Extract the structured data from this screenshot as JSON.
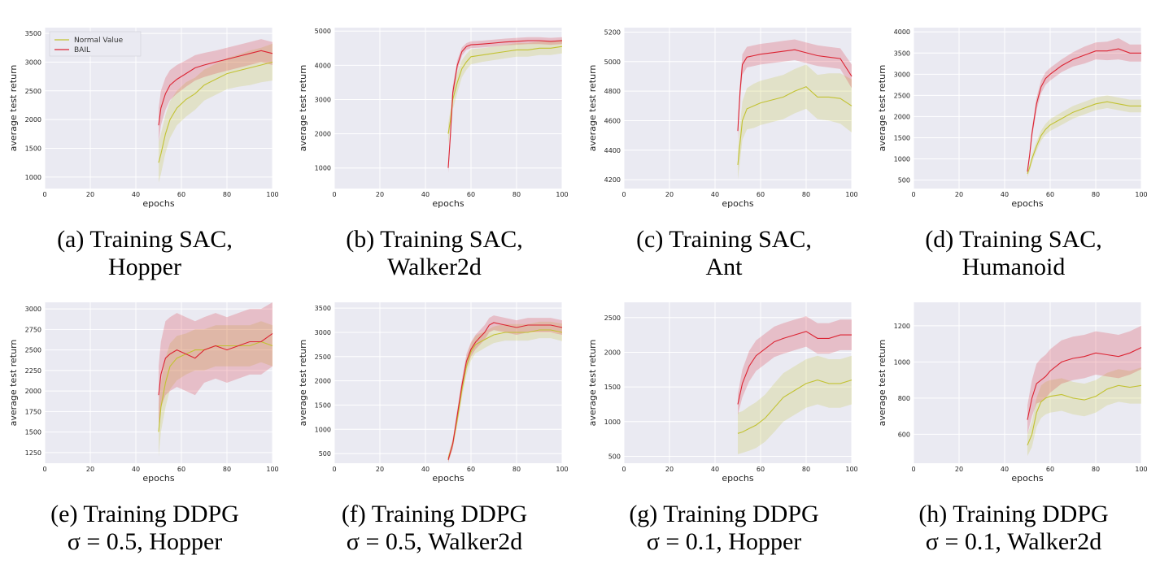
{
  "colors": {
    "normal": "#c2c232",
    "bail": "#dc2433",
    "plot_bg": "#eaeaf2",
    "grid": "#ffffff"
  },
  "legend": {
    "labels": [
      "Normal Value",
      "BAIL"
    ],
    "placement": "upper-left (panel a)"
  },
  "chart_data": [
    {
      "type": "line",
      "caption": [
        "(a) Training SAC,",
        "Hopper"
      ],
      "xlabel": "epochs",
      "ylabel": "average test return",
      "xlim": [
        0,
        100
      ],
      "ylim": [
        800,
        3600
      ],
      "xticks": [
        0,
        20,
        40,
        60,
        80,
        100
      ],
      "yticks": [
        1000,
        1500,
        2000,
        2500,
        3000,
        3500
      ],
      "series": [
        {
          "name": "Normal Value",
          "x": [
            50,
            51,
            53,
            55,
            58,
            62,
            66,
            70,
            75,
            80,
            85,
            90,
            95,
            100
          ],
          "y": [
            1250,
            1400,
            1750,
            2000,
            2200,
            2350,
            2450,
            2600,
            2700,
            2800,
            2850,
            2900,
            2950,
            3000
          ],
          "band": [
            350,
            350,
            330,
            320,
            300,
            300,
            280,
            270,
            270,
            270,
            280,
            300,
            300,
            320
          ]
        },
        {
          "name": "BAIL",
          "x": [
            50,
            51,
            53,
            55,
            58,
            62,
            66,
            70,
            75,
            80,
            85,
            90,
            95,
            100
          ],
          "y": [
            1900,
            2200,
            2450,
            2600,
            2700,
            2800,
            2900,
            2950,
            3000,
            3050,
            3100,
            3150,
            3200,
            3150
          ],
          "band": [
            300,
            300,
            280,
            260,
            250,
            230,
            220,
            210,
            200,
            200,
            200,
            200,
            200,
            200
          ]
        }
      ]
    },
    {
      "type": "line",
      "caption": [
        "(b) Training SAC,",
        "Walker2d"
      ],
      "xlabel": "epochs",
      "ylabel": "average test return",
      "xlim": [
        0,
        100
      ],
      "ylim": [
        400,
        5100
      ],
      "xticks": [
        0,
        20,
        40,
        60,
        80,
        100
      ],
      "yticks": [
        1000,
        2000,
        3000,
        4000,
        5000
      ],
      "series": [
        {
          "name": "Normal Value",
          "x": [
            50,
            51,
            52,
            54,
            56,
            58,
            60,
            65,
            70,
            75,
            80,
            85,
            90,
            95,
            100
          ],
          "y": [
            2000,
            2400,
            3000,
            3500,
            3900,
            4100,
            4250,
            4300,
            4350,
            4400,
            4450,
            4450,
            4500,
            4500,
            4550
          ],
          "band": [
            300,
            300,
            300,
            300,
            250,
            230,
            220,
            200,
            200,
            200,
            200,
            200,
            200,
            200,
            200
          ]
        },
        {
          "name": "BAIL",
          "x": [
            50,
            51,
            52,
            54,
            56,
            58,
            60,
            65,
            70,
            75,
            80,
            85,
            90,
            95,
            100
          ],
          "y": [
            1000,
            2000,
            3200,
            4000,
            4400,
            4550,
            4600,
            4620,
            4650,
            4680,
            4700,
            4720,
            4720,
            4700,
            4720
          ],
          "band": [
            150,
            200,
            200,
            150,
            120,
            100,
            100,
            100,
            100,
            100,
            100,
            100,
            100,
            100,
            100
          ]
        }
      ]
    },
    {
      "type": "line",
      "caption": [
        "(c) Training SAC,",
        "Ant"
      ],
      "xlabel": "epochs",
      "ylabel": "average test return",
      "xlim": [
        0,
        100
      ],
      "ylim": [
        4140,
        5230
      ],
      "xticks": [
        0,
        20,
        40,
        60,
        80,
        100
      ],
      "yticks": [
        4200,
        4400,
        4600,
        4800,
        5000,
        5200
      ],
      "series": [
        {
          "name": "Normal Value",
          "x": [
            50,
            51,
            52,
            54,
            57,
            60,
            65,
            70,
            75,
            80,
            85,
            90,
            95,
            100
          ],
          "y": [
            4300,
            4450,
            4600,
            4680,
            4700,
            4720,
            4740,
            4760,
            4800,
            4830,
            4760,
            4760,
            4750,
            4700
          ],
          "band": [
            100,
            120,
            130,
            140,
            150,
            150,
            150,
            150,
            150,
            150,
            150,
            160,
            170,
            180
          ]
        },
        {
          "name": "BAIL",
          "x": [
            50,
            51,
            52,
            54,
            57,
            60,
            65,
            70,
            75,
            80,
            85,
            90,
            95,
            100
          ],
          "y": [
            4530,
            4800,
            4980,
            5030,
            5040,
            5050,
            5060,
            5070,
            5080,
            5060,
            5040,
            5030,
            5020,
            4900
          ],
          "band": [
            60,
            60,
            70,
            70,
            70,
            70,
            70,
            70,
            70,
            70,
            70,
            70,
            70,
            80
          ]
        }
      ]
    },
    {
      "type": "line",
      "caption": [
        "(d) Training SAC,",
        "Humanoid"
      ],
      "xlabel": "epochs",
      "ylabel": "average test return",
      "xlim": [
        0,
        100
      ],
      "ylim": [
        300,
        4100
      ],
      "xticks": [
        0,
        20,
        40,
        60,
        80,
        100
      ],
      "yticks": [
        500,
        1000,
        1500,
        2000,
        2500,
        3000,
        3500,
        4000
      ],
      "series": [
        {
          "name": "Normal Value",
          "x": [
            50,
            51,
            52,
            54,
            56,
            58,
            60,
            65,
            70,
            75,
            80,
            85,
            90,
            95,
            100
          ],
          "y": [
            650,
            800,
            1000,
            1300,
            1550,
            1700,
            1800,
            1950,
            2100,
            2200,
            2300,
            2350,
            2300,
            2250,
            2250
          ],
          "band": [
            80,
            90,
            100,
            110,
            120,
            130,
            140,
            150,
            150,
            150,
            150,
            150,
            150,
            150,
            150
          ]
        },
        {
          "name": "BAIL",
          "x": [
            50,
            51,
            52,
            54,
            56,
            58,
            60,
            65,
            70,
            75,
            80,
            85,
            90,
            95,
            100
          ],
          "y": [
            700,
            1100,
            1600,
            2300,
            2700,
            2900,
            3000,
            3200,
            3350,
            3450,
            3550,
            3550,
            3600,
            3500,
            3500
          ],
          "band": [
            80,
            100,
            120,
            150,
            150,
            150,
            150,
            150,
            170,
            200,
            200,
            220,
            250,
            200,
            200
          ]
        }
      ]
    },
    {
      "type": "line",
      "caption": [
        "(e) Training DDPG",
        "σ = 0.5, Hopper"
      ],
      "xlabel": "epochs",
      "ylabel": "average test return",
      "xlim": [
        0,
        100
      ],
      "ylim": [
        1120,
        3080
      ],
      "xticks": [
        0,
        20,
        40,
        60,
        80,
        100
      ],
      "yticks": [
        1250,
        1500,
        1750,
        2000,
        2250,
        2500,
        2750,
        3000
      ],
      "series": [
        {
          "name": "Normal Value",
          "x": [
            50,
            51,
            53,
            55,
            58,
            62,
            66,
            70,
            75,
            80,
            85,
            90,
            95,
            100
          ],
          "y": [
            1500,
            1800,
            2100,
            2300,
            2400,
            2450,
            2500,
            2500,
            2550,
            2550,
            2550,
            2550,
            2600,
            2550
          ],
          "band": [
            300,
            300,
            300,
            280,
            270,
            250,
            250,
            250,
            250,
            250,
            250,
            250,
            250,
            250
          ]
        },
        {
          "name": "BAIL",
          "x": [
            50,
            51,
            53,
            55,
            58,
            62,
            66,
            70,
            75,
            80,
            85,
            90,
            95,
            100
          ],
          "y": [
            1950,
            2200,
            2400,
            2450,
            2500,
            2450,
            2400,
            2500,
            2550,
            2500,
            2550,
            2600,
            2600,
            2700
          ],
          "band": [
            350,
            400,
            450,
            450,
            450,
            450,
            450,
            400,
            400,
            400,
            400,
            400,
            400,
            400
          ]
        }
      ]
    },
    {
      "type": "line",
      "caption": [
        "(f) Training DDPG",
        "σ = 0.5, Walker2d"
      ],
      "xlabel": "epochs",
      "ylabel": "average test return",
      "xlim": [
        0,
        100
      ],
      "ylim": [
        300,
        3620
      ],
      "xticks": [
        0,
        20,
        40,
        60,
        80,
        100
      ],
      "yticks": [
        500,
        1000,
        1500,
        2000,
        2500,
        3000,
        3500
      ],
      "series": [
        {
          "name": "Normal Value",
          "x": [
            50,
            52,
            54,
            56,
            58,
            60,
            62,
            64,
            66,
            68,
            70,
            75,
            80,
            85,
            90,
            95,
            100
          ],
          "y": [
            400,
            700,
            1200,
            1800,
            2300,
            2600,
            2750,
            2800,
            2850,
            2900,
            2950,
            3000,
            3000,
            3000,
            3050,
            3050,
            3000
          ],
          "band": [
            80,
            100,
            120,
            150,
            170,
            180,
            180,
            180,
            170,
            170,
            170,
            170,
            170,
            170,
            170,
            170,
            180
          ]
        },
        {
          "name": "BAIL",
          "x": [
            50,
            52,
            54,
            56,
            58,
            60,
            62,
            64,
            66,
            68,
            70,
            75,
            80,
            85,
            90,
            95,
            100
          ],
          "y": [
            370,
            700,
            1300,
            1900,
            2400,
            2650,
            2800,
            2900,
            3000,
            3150,
            3200,
            3150,
            3100,
            3150,
            3150,
            3150,
            3100
          ],
          "band": [
            60,
            90,
            110,
            130,
            150,
            150,
            150,
            150,
            150,
            150,
            150,
            150,
            150,
            150,
            150,
            150,
            150
          ]
        }
      ]
    },
    {
      "type": "line",
      "caption": [
        "(g) Training DDPG",
        "σ = 0.1, Hopper"
      ],
      "xlabel": "epochs",
      "ylabel": "average test return",
      "xlim": [
        0,
        100
      ],
      "ylim": [
        400,
        2720
      ],
      "xticks": [
        0,
        20,
        40,
        60,
        80,
        100
      ],
      "yticks": [
        500,
        1000,
        1500,
        2000,
        2500
      ],
      "series": [
        {
          "name": "Normal Value",
          "x": [
            50,
            52,
            55,
            58,
            62,
            66,
            70,
            75,
            80,
            85,
            90,
            95,
            100
          ],
          "y": [
            830,
            850,
            900,
            950,
            1050,
            1200,
            1350,
            1450,
            1550,
            1600,
            1550,
            1550,
            1600
          ],
          "band": [
            300,
            300,
            320,
            330,
            340,
            350,
            350,
            350,
            350,
            350,
            350,
            350,
            350
          ]
        },
        {
          "name": "BAIL",
          "x": [
            50,
            52,
            55,
            58,
            62,
            66,
            70,
            75,
            80,
            85,
            90,
            95,
            100
          ],
          "y": [
            1250,
            1550,
            1800,
            1950,
            2050,
            2150,
            2200,
            2250,
            2300,
            2200,
            2200,
            2250,
            2250
          ],
          "band": [
            150,
            200,
            220,
            220,
            220,
            220,
            220,
            220,
            220,
            220,
            220,
            220,
            220
          ]
        }
      ]
    },
    {
      "type": "line",
      "caption": [
        "(h) Training DDPG",
        "σ = 0.1, Walker2d"
      ],
      "xlabel": "epochs",
      "ylabel": "average test return",
      "xlim": [
        0,
        100
      ],
      "ylim": [
        440,
        1330
      ],
      "xticks": [
        0,
        20,
        40,
        60,
        80,
        100
      ],
      "yticks": [
        600,
        800,
        1000,
        1200
      ],
      "series": [
        {
          "name": "Normal Value",
          "x": [
            50,
            52,
            54,
            56,
            58,
            60,
            65,
            70,
            75,
            80,
            85,
            90,
            95,
            100
          ],
          "y": [
            540,
            600,
            720,
            780,
            800,
            810,
            820,
            800,
            790,
            810,
            850,
            870,
            860,
            870
          ],
          "band": [
            60,
            70,
            80,
            90,
            90,
            90,
            90,
            90,
            90,
            90,
            90,
            90,
            90,
            100
          ]
        },
        {
          "name": "BAIL",
          "x": [
            50,
            52,
            54,
            56,
            58,
            60,
            65,
            70,
            75,
            80,
            85,
            90,
            95,
            100
          ],
          "y": [
            680,
            800,
            880,
            900,
            920,
            950,
            1000,
            1020,
            1030,
            1050,
            1040,
            1030,
            1050,
            1080
          ],
          "band": [
            80,
            100,
            110,
            120,
            120,
            120,
            120,
            120,
            120,
            120,
            120,
            120,
            120,
            120
          ]
        }
      ]
    }
  ]
}
